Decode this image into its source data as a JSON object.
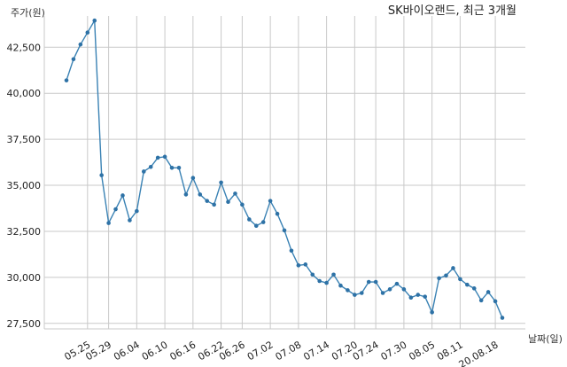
{
  "chart_data": {
    "type": "line",
    "title": "SK바이오랜드, 최근 3개월",
    "ylabel": "주가(원)",
    "xlabel": "날짜(일)",
    "ylim": [
      27200,
      44200
    ],
    "yticks": [
      27500,
      30000,
      32500,
      35000,
      37500,
      40000,
      42500
    ],
    "ytick_labels": [
      "27,500",
      "30,000",
      "32,500",
      "35,000",
      "37,500",
      "40,000",
      "42,500"
    ],
    "x_tick_labels": [
      "05.25",
      "05.29",
      "06.04",
      "06.10",
      "06.16",
      "06.22",
      "06.26",
      "07.02",
      "07.08",
      "07.14",
      "07.20",
      "07.24",
      "07.30",
      "08.05",
      "08.11",
      "20.08.18"
    ],
    "x_tick_index": [
      3,
      6,
      10,
      14,
      18,
      22,
      25,
      29,
      33,
      37,
      41,
      44,
      48,
      52,
      56,
      61
    ],
    "grid": true,
    "series": [
      {
        "values": [
          40700,
          41850,
          42650,
          43300,
          43950,
          35550,
          32950,
          33700,
          34450,
          33100,
          33600,
          35750,
          36000,
          36500,
          36550,
          35950,
          35950,
          34500,
          35400,
          34500,
          34150,
          33950,
          35150,
          34100,
          34550,
          33950,
          33150,
          32800,
          33000,
          34150,
          33450,
          32550,
          31450,
          30650,
          30700,
          30150,
          29800,
          29700,
          30150,
          29550,
          29300,
          29050,
          29150,
          29750,
          29750,
          29150,
          29350,
          29650,
          29350,
          28900,
          29050,
          28950,
          28100,
          29950,
          30100,
          30500,
          29900,
          29600,
          29400,
          28750,
          29200,
          28700,
          27800
        ]
      }
    ]
  }
}
